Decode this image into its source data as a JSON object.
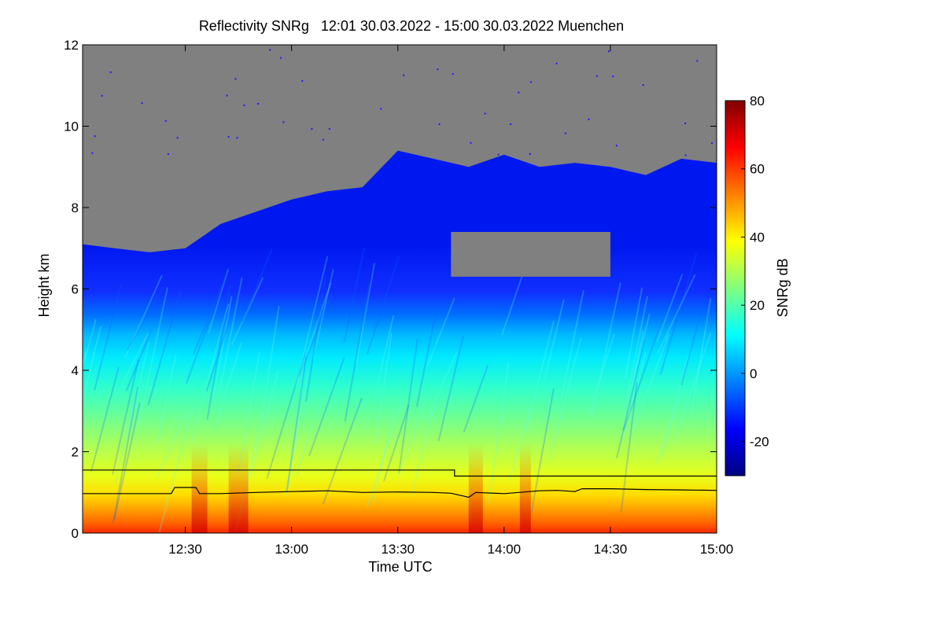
{
  "chart_data": {
    "type": "heatmap",
    "title": "Reflectivity SNRg   12:01 30.03.2022 - 15:00 30.03.2022 Muenchen",
    "xlabel": "Time UTC",
    "ylabel": "Height km",
    "colorbar_label": "SNRg dB",
    "xlim": [
      "12:01",
      "15:00"
    ],
    "ylim": [
      0,
      12
    ],
    "x_ticks": [
      "12:30",
      "13:00",
      "13:30",
      "14:00",
      "14:30",
      "15:00"
    ],
    "y_ticks": [
      0,
      2,
      4,
      6,
      8,
      10,
      12
    ],
    "colorbar_range": [
      -30,
      80
    ],
    "colorbar_ticks": [
      -20,
      0,
      20,
      40,
      60,
      80
    ],
    "colormap": [
      "#000080",
      "#0000ff",
      "#0080ff",
      "#00ffff",
      "#80ff80",
      "#ffff00",
      "#ff8000",
      "#ff0000",
      "#800000"
    ],
    "no_signal_color": "#808080",
    "echo_top_km": {
      "time": [
        "12:01",
        "12:10",
        "12:20",
        "12:30",
        "12:40",
        "12:50",
        "13:00",
        "13:10",
        "13:20",
        "13:30",
        "13:40",
        "13:50",
        "14:00",
        "14:10",
        "14:20",
        "14:30",
        "14:40",
        "14:50",
        "15:00"
      ],
      "height": [
        7.1,
        7.0,
        6.9,
        7.0,
        7.6,
        7.9,
        8.2,
        8.4,
        8.5,
        9.4,
        9.2,
        9.0,
        9.3,
        9.0,
        9.1,
        9.0,
        8.8,
        9.2,
        9.1
      ]
    },
    "gap_region": {
      "time": [
        "13:45",
        "14:30"
      ],
      "height_km": [
        6.3,
        7.4
      ]
    },
    "series": [
      {
        "line_color": "#000000",
        "x": [
          "12:01",
          "13:46",
          "13:46",
          "15:00"
        ],
        "y": [
          1.55,
          1.55,
          1.4,
          1.4
        ]
      },
      {
        "line_color": "#000000",
        "x": [
          "12:01",
          "12:26",
          "12:27",
          "12:33",
          "12:34",
          "12:40",
          "12:50",
          "13:00",
          "13:10",
          "13:20",
          "13:30",
          "13:40",
          "13:45",
          "13:50",
          "13:52",
          "14:00",
          "14:10",
          "14:15",
          "14:20",
          "14:22",
          "14:30",
          "14:40",
          "14:50",
          "15:00"
        ],
        "y": [
          0.97,
          0.97,
          1.12,
          1.12,
          0.97,
          0.97,
          1.0,
          1.02,
          1.04,
          1.0,
          1.01,
          1.0,
          0.98,
          0.88,
          1.0,
          0.97,
          1.04,
          1.05,
          1.02,
          1.09,
          1.09,
          1.07,
          1.06,
          1.05
        ]
      }
    ]
  }
}
